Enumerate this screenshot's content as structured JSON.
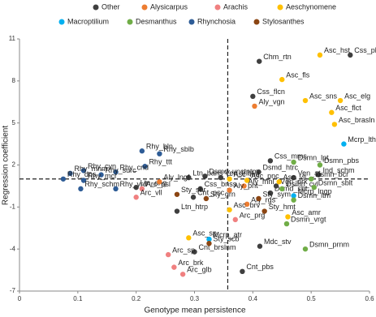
{
  "chart_data": {
    "type": "scatter",
    "x_label": "Genotype mean persistence",
    "y_label": "Regression coefficient",
    "xlim": [
      0,
      0.6
    ],
    "ylim": [
      -7,
      11
    ],
    "xticks": [
      0,
      0.1,
      0.2,
      0.3,
      0.4,
      0.5,
      0.6
    ],
    "yticks": [
      -7,
      -4,
      -1,
      2,
      5,
      8,
      11
    ],
    "reference_lines": {
      "x": 0.357,
      "y": 1.0
    },
    "series": [
      {
        "name": "Other",
        "color": "#3f3f3f",
        "x": [
          0.567,
          0.411,
          0.4,
          0.318,
          0.41,
          0.345,
          0.29,
          0.31,
          0.298,
          0.2,
          0.27,
          0.3,
          0.412,
          0.382,
          0.43,
          0.513,
          0.47,
          0.43,
          0.44
        ],
        "y": [
          9.85,
          9.4,
          6.9,
          1.2,
          1.5,
          1.1,
          1.1,
          0.3,
          -0.3,
          0.4,
          -1.3,
          -4.2,
          -3.8,
          -5.6,
          2.3,
          1.3,
          1.1,
          0.0,
          0.5
        ],
        "labels": [
          "Css_pls",
          "Chm_rtn",
          "Css_flcn",
          "Dsmd_unctntm",
          "Dsmd_htrc",
          "Ven_trlbt",
          "Ltn_bans",
          "Css_bnss",
          "Cnt_psc",
          "Ltn_ang",
          "Ltn_htrp",
          "Cnt_brslnm",
          "Mdc_stv",
          "Cnt_pbs",
          "Css_mms",
          "Ind_schm",
          "Ven_at",
          "Dsmd_sbt",
          "Vgrl_prk"
        ]
      },
      {
        "name": "Alysicarpus",
        "color": "#ed7d31",
        "x": [
          0.403,
          0.385,
          0.36,
          0.24,
          0.39
        ],
        "y": [
          6.2,
          0.5,
          0.2,
          0.8,
          -0.8
        ],
        "labels": [
          "Aly_vgn",
          "Aly_mnl",
          "Aly_pnt",
          "Aly_lngf",
          "Aly_rgs"
        ]
      },
      {
        "name": "Arachis",
        "color": "#f08080",
        "x": [
          0.21,
          0.2,
          0.37,
          0.255,
          0.265,
          0.28
        ],
        "y": [
          0.3,
          -0.3,
          -1.9,
          -4.4,
          -5.3,
          -5.8
        ],
        "labels": [
          "Arc_psl",
          "Arc_vll",
          "Arc_prg",
          "Arc_sp",
          "Arc_brk",
          "Arc_glb"
        ]
      },
      {
        "name": "Aeschynomene",
        "color": "#ffc000",
        "x": [
          0.515,
          0.45,
          0.49,
          0.55,
          0.535,
          0.54,
          0.36,
          0.445,
          0.39,
          0.36,
          0.46,
          0.29
        ],
        "y": [
          9.85,
          8.1,
          6.6,
          6.6,
          5.75,
          4.9,
          1.0,
          0.8,
          0.9,
          -1.2,
          -1.7,
          -3.2
        ],
        "labels": [
          "Asc_hst",
          "Asc_fls",
          "Asc_sns",
          "Asc_elg",
          "Asc_flct",
          "Asc_brasln",
          "Asc_ind",
          "Asc_vll",
          "Asc_pnc",
          "Asc_brv",
          "Asc_amr",
          "Asc_sp"
        ]
      },
      {
        "name": "Macroptilium",
        "color": "#00b0f0",
        "x": [
          0.556,
          0.47,
          0.325
        ],
        "y": [
          3.5,
          -0.2,
          -3.3
        ],
        "labels": [
          "Mcrp_lth",
          "Mcrp_lngp",
          "Mcrp_atr"
        ]
      },
      {
        "name": "Desmanthus",
        "color": "#70ad47",
        "x": [
          0.515,
          0.47,
          0.5,
          0.45,
          0.505,
          0.458,
          0.49,
          0.47
        ],
        "y": [
          2.0,
          2.2,
          1.0,
          0.3,
          0.4,
          -2.2,
          -4.0,
          -0.5
        ],
        "labels": [
          "Dsmn_pbs",
          "Dsmn_lpt",
          "Dsmn_bcr",
          "Dsmn_cvl",
          "Dsmn_sblt",
          "Dsmn_vrgt",
          "Dsmn_prnm",
          "Dsmn_ltm"
        ]
      },
      {
        "name": "Rhynchosia",
        "color": "#2e5c96",
        "x": [
          0.21,
          0.24,
          0.215,
          0.11,
          0.087,
          0.165,
          0.14,
          0.075,
          0.11,
          0.105,
          0.165
        ],
        "y": [
          3.0,
          2.8,
          1.9,
          1.6,
          1.4,
          1.5,
          1.3,
          1.0,
          0.9,
          0.3,
          0.3
        ],
        "labels": [
          "Rhy_bln",
          "Rhy_sblb",
          "Rhy_ttt",
          "Rhy_cyn",
          "Rhy_mnm",
          "Rhy_cnd",
          "Rhy_surc",
          "Rhy_dns",
          "Rhy_mcr",
          "Rhy_schm",
          "Rhy_vrd"
        ]
      },
      {
        "name": "Stylosanthes",
        "color": "#8b4513",
        "x": [
          0.27,
          0.32,
          0.41,
          0.42,
          0.325
        ],
        "y": [
          -0.1,
          -0.4,
          -0.4,
          -1.3,
          -3.6
        ],
        "labels": [
          "Sty_sbr",
          "Sty_grn",
          "Sty_sym",
          "Sty_hmt",
          "Sty_scb"
        ]
      }
    ]
  }
}
